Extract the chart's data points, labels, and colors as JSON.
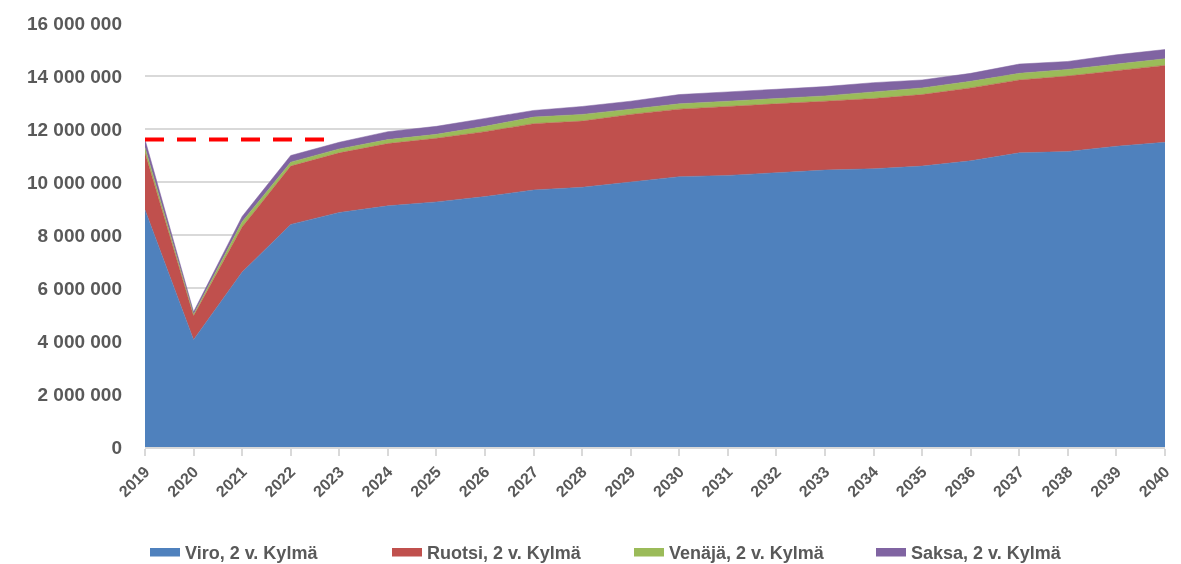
{
  "chart_data": {
    "type": "area",
    "stacked": true,
    "x": [
      2019,
      2020,
      2021,
      2022,
      2023,
      2024,
      2025,
      2026,
      2027,
      2028,
      2029,
      2030,
      2031,
      2032,
      2033,
      2034,
      2035,
      2036,
      2037,
      2038,
      2039,
      2040
    ],
    "xlim": [
      2019,
      2040
    ],
    "xticks": [
      2019,
      2020,
      2021,
      2022,
      2023,
      2024,
      2025,
      2026,
      2027,
      2028,
      2029,
      2030,
      2031,
      2032,
      2033,
      2034,
      2035,
      2036,
      2037,
      2038,
      2039,
      2040
    ],
    "ylim": [
      0,
      16000000
    ],
    "yticks": [
      0,
      {
        "value": 2000000,
        "label": "2 000 000"
      },
      {
        "value": 4000000,
        "label": "4 000 000"
      },
      {
        "value": 6000000,
        "label": "6 000 000"
      },
      {
        "value": 8000000,
        "label": "8 000 000"
      },
      {
        "value": 10000000,
        "label": "10 000 000"
      },
      {
        "value": 12000000,
        "label": "12 000 000"
      },
      {
        "value": 14000000,
        "label": "14 000 000"
      },
      {
        "value": 16000000,
        "label": "16 000 000"
      }
    ],
    "series": [
      {
        "name": "Viro, 2 v. Kylmä",
        "color": "#4f81bd",
        "values": [
          8950000,
          4050000,
          6600000,
          8400000,
          8850000,
          9100000,
          9250000,
          9450000,
          9700000,
          9800000,
          10000000,
          10200000,
          10250000,
          10350000,
          10450000,
          10500000,
          10600000,
          10800000,
          11100000,
          11150000,
          11350000,
          11500000
        ]
      },
      {
        "name": "Ruotsi, 2 v. Kylmä",
        "color": "#c0504d",
        "values": [
          2150000,
          900000,
          1700000,
          2200000,
          2250000,
          2350000,
          2400000,
          2450000,
          2500000,
          2500000,
          2550000,
          2550000,
          2600000,
          2600000,
          2600000,
          2650000,
          2700000,
          2750000,
          2750000,
          2850000,
          2850000,
          2900000
        ]
      },
      {
        "name": "Venäjä, 2 v. Kylmä",
        "color": "#9bbb59",
        "values": [
          200000,
          50000,
          200000,
          150000,
          150000,
          150000,
          150000,
          200000,
          250000,
          250000,
          200000,
          200000,
          200000,
          200000,
          200000,
          250000,
          250000,
          250000,
          250000,
          250000,
          250000,
          250000
        ]
      },
      {
        "name": "Saksa, 2 v. Kylmä",
        "color": "#8064a2",
        "values": [
          300000,
          100000,
          200000,
          250000,
          250000,
          300000,
          300000,
          300000,
          250000,
          300000,
          300000,
          350000,
          350000,
          350000,
          350000,
          350000,
          300000,
          300000,
          350000,
          300000,
          350000,
          350000
        ]
      },
      {
        "type": "line",
        "color": "#ff0000",
        "line_style": "dashed",
        "x": [
          2019,
          2022.7
        ],
        "values": [
          11600000,
          11600000
        ]
      }
    ],
    "grid": "y",
    "legend": "bottom",
    "marker": "none"
  }
}
